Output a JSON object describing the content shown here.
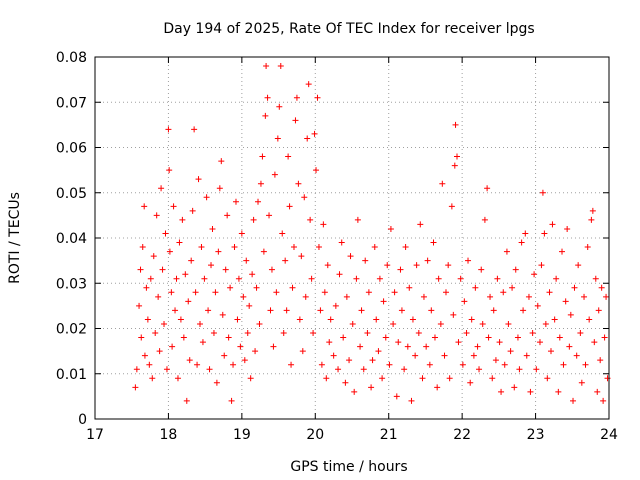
{
  "chart_data": {
    "type": "scatter",
    "title": "Day 194 of 2025, Rate Of TEC Index for receiver lpgs",
    "xlabel": "GPS time / hours",
    "ylabel": "ROTI / TECUs",
    "xlim": [
      17,
      24
    ],
    "ylim": [
      0,
      0.08
    ],
    "x_ticks": [
      17,
      18,
      19,
      20,
      21,
      22,
      23,
      24
    ],
    "x_tick_labels": [
      "17",
      "18",
      "19",
      "20",
      "21",
      "22",
      "23",
      "24"
    ],
    "y_ticks": [
      0,
      0.01,
      0.02,
      0.03,
      0.04,
      0.05,
      0.06,
      0.07,
      0.08
    ],
    "y_tick_labels": [
      "0",
      "0.01",
      "0.02",
      "0.03",
      "0.04",
      "0.05",
      "0.06",
      "0.07",
      "0.08"
    ],
    "grid": true,
    "marker": "+",
    "color": "#ff0000",
    "series": [
      {
        "name": "ROTI",
        "points": [
          [
            17.55,
            0.007
          ],
          [
            17.57,
            0.011
          ],
          [
            17.6,
            0.025
          ],
          [
            17.62,
            0.033
          ],
          [
            17.63,
            0.018
          ],
          [
            17.65,
            0.038
          ],
          [
            17.67,
            0.047
          ],
          [
            17.68,
            0.014
          ],
          [
            17.7,
            0.029
          ],
          [
            17.72,
            0.022
          ],
          [
            17.74,
            0.012
          ],
          [
            17.76,
            0.031
          ],
          [
            17.78,
            0.009
          ],
          [
            17.8,
            0.036
          ],
          [
            17.82,
            0.019
          ],
          [
            17.84,
            0.045
          ],
          [
            17.86,
            0.027
          ],
          [
            17.88,
            0.015
          ],
          [
            17.9,
            0.051
          ],
          [
            17.92,
            0.033
          ],
          [
            17.94,
            0.021
          ],
          [
            17.96,
            0.041
          ],
          [
            17.98,
            0.011
          ],
          [
            18.0,
            0.064
          ],
          [
            18.01,
            0.055
          ],
          [
            18.02,
            0.037
          ],
          [
            18.04,
            0.028
          ],
          [
            18.05,
            0.016
          ],
          [
            18.07,
            0.047
          ],
          [
            18.09,
            0.024
          ],
          [
            18.11,
            0.031
          ],
          [
            18.13,
            0.009
          ],
          [
            18.15,
            0.039
          ],
          [
            18.17,
            0.022
          ],
          [
            18.19,
            0.044
          ],
          [
            18.21,
            0.018
          ],
          [
            18.23,
            0.032
          ],
          [
            18.25,
            0.004
          ],
          [
            18.27,
            0.026
          ],
          [
            18.29,
            0.013
          ],
          [
            18.31,
            0.035
          ],
          [
            18.33,
            0.046
          ],
          [
            18.35,
            0.064
          ],
          [
            18.37,
            0.028
          ],
          [
            18.39,
            0.012
          ],
          [
            18.41,
            0.053
          ],
          [
            18.43,
            0.021
          ],
          [
            18.45,
            0.038
          ],
          [
            18.47,
            0.017
          ],
          [
            18.49,
            0.031
          ],
          [
            18.52,
            0.049
          ],
          [
            18.54,
            0.024
          ],
          [
            18.56,
            0.011
          ],
          [
            18.58,
            0.034
          ],
          [
            18.6,
            0.042
          ],
          [
            18.62,
            0.019
          ],
          [
            18.64,
            0.028
          ],
          [
            18.66,
            0.008
          ],
          [
            18.68,
            0.037
          ],
          [
            18.7,
            0.051
          ],
          [
            18.72,
            0.057
          ],
          [
            18.74,
            0.023
          ],
          [
            18.76,
            0.014
          ],
          [
            18.78,
            0.033
          ],
          [
            18.8,
            0.045
          ],
          [
            18.82,
            0.018
          ],
          [
            18.84,
            0.029
          ],
          [
            18.86,
            0.004
          ],
          [
            18.88,
            0.012
          ],
          [
            18.9,
            0.038
          ],
          [
            18.92,
            0.048
          ],
          [
            18.94,
            0.022
          ],
          [
            18.96,
            0.031
          ],
          [
            18.98,
            0.016
          ],
          [
            19.0,
            0.041
          ],
          [
            19.02,
            0.027
          ],
          [
            19.04,
            0.013
          ],
          [
            19.06,
            0.035
          ],
          [
            19.08,
            0.019
          ],
          [
            19.1,
            0.025
          ],
          [
            19.12,
            0.009
          ],
          [
            19.14,
            0.032
          ],
          [
            19.16,
            0.044
          ],
          [
            19.18,
            0.015
          ],
          [
            19.2,
            0.029
          ],
          [
            19.22,
            0.048
          ],
          [
            19.24,
            0.021
          ],
          [
            19.26,
            0.052
          ],
          [
            19.28,
            0.058
          ],
          [
            19.3,
            0.037
          ],
          [
            19.32,
            0.067
          ],
          [
            19.33,
            0.078
          ],
          [
            19.35,
            0.071
          ],
          [
            19.37,
            0.045
          ],
          [
            19.39,
            0.024
          ],
          [
            19.41,
            0.033
          ],
          [
            19.43,
            0.016
          ],
          [
            19.45,
            0.054
          ],
          [
            19.47,
            0.028
          ],
          [
            19.49,
            0.062
          ],
          [
            19.51,
            0.069
          ],
          [
            19.53,
            0.078
          ],
          [
            19.55,
            0.041
          ],
          [
            19.57,
            0.019
          ],
          [
            19.59,
            0.035
          ],
          [
            19.61,
            0.024
          ],
          [
            19.63,
            0.058
          ],
          [
            19.65,
            0.047
          ],
          [
            19.67,
            0.012
          ],
          [
            19.69,
            0.029
          ],
          [
            19.71,
            0.038
          ],
          [
            19.73,
            0.066
          ],
          [
            19.75,
            0.071
          ],
          [
            19.77,
            0.052
          ],
          [
            19.79,
            0.022
          ],
          [
            19.81,
            0.036
          ],
          [
            19.83,
            0.015
          ],
          [
            19.85,
            0.049
          ],
          [
            19.87,
            0.027
          ],
          [
            19.89,
            0.062
          ],
          [
            19.91,
            0.074
          ],
          [
            19.93,
            0.044
          ],
          [
            19.95,
            0.031
          ],
          [
            19.97,
            0.019
          ],
          [
            19.99,
            0.063
          ],
          [
            20.01,
            0.055
          ],
          [
            20.03,
            0.071
          ],
          [
            20.05,
            0.038
          ],
          [
            20.07,
            0.024
          ],
          [
            20.09,
            0.012
          ],
          [
            20.11,
            0.043
          ],
          [
            20.13,
            0.028
          ],
          [
            20.15,
            0.009
          ],
          [
            20.17,
            0.034
          ],
          [
            20.19,
            0.017
          ],
          [
            20.21,
            0.022
          ],
          [
            20.25,
            0.014
          ],
          [
            20.28,
            0.025
          ],
          [
            20.31,
            0.011
          ],
          [
            20.33,
            0.032
          ],
          [
            20.36,
            0.039
          ],
          [
            20.38,
            0.018
          ],
          [
            20.41,
            0.008
          ],
          [
            20.43,
            0.027
          ],
          [
            20.46,
            0.013
          ],
          [
            20.48,
            0.036
          ],
          [
            20.51,
            0.021
          ],
          [
            20.53,
            0.006
          ],
          [
            20.56,
            0.031
          ],
          [
            20.58,
            0.044
          ],
          [
            20.61,
            0.016
          ],
          [
            20.63,
            0.024
          ],
          [
            20.66,
            0.011
          ],
          [
            20.68,
            0.035
          ],
          [
            20.71,
            0.019
          ],
          [
            20.73,
            0.028
          ],
          [
            20.76,
            0.007
          ],
          [
            20.78,
            0.013
          ],
          [
            20.81,
            0.038
          ],
          [
            20.83,
            0.022
          ],
          [
            20.86,
            0.015
          ],
          [
            20.88,
            0.031
          ],
          [
            20.91,
            0.009
          ],
          [
            20.93,
            0.026
          ],
          [
            20.96,
            0.018
          ],
          [
            20.98,
            0.034
          ],
          [
            21.01,
            0.012
          ],
          [
            21.03,
            0.042
          ],
          [
            21.06,
            0.021
          ],
          [
            21.08,
            0.028
          ],
          [
            21.11,
            0.005
          ],
          [
            21.13,
            0.017
          ],
          [
            21.16,
            0.033
          ],
          [
            21.18,
            0.024
          ],
          [
            21.21,
            0.011
          ],
          [
            21.23,
            0.038
          ],
          [
            21.26,
            0.016
          ],
          [
            21.28,
            0.029
          ],
          [
            21.31,
            0.004
          ],
          [
            21.33,
            0.022
          ],
          [
            21.36,
            0.014
          ],
          [
            21.38,
            0.034
          ],
          [
            21.41,
            0.019
          ],
          [
            21.43,
            0.043
          ],
          [
            21.46,
            0.009
          ],
          [
            21.48,
            0.027
          ],
          [
            21.51,
            0.016
          ],
          [
            21.53,
            0.035
          ],
          [
            21.56,
            0.012
          ],
          [
            21.58,
            0.024
          ],
          [
            21.61,
            0.039
          ],
          [
            21.63,
            0.018
          ],
          [
            21.66,
            0.007
          ],
          [
            21.68,
            0.031
          ],
          [
            21.71,
            0.021
          ],
          [
            21.73,
            0.052
          ],
          [
            21.76,
            0.014
          ],
          [
            21.78,
            0.028
          ],
          [
            21.81,
            0.034
          ],
          [
            21.83,
            0.009
          ],
          [
            21.86,
            0.047
          ],
          [
            21.88,
            0.023
          ],
          [
            21.9,
            0.056
          ],
          [
            21.91,
            0.065
          ],
          [
            21.93,
            0.058
          ],
          [
            21.95,
            0.017
          ],
          [
            21.98,
            0.031
          ],
          [
            22.01,
            0.012
          ],
          [
            22.03,
            0.026
          ],
          [
            22.06,
            0.019
          ],
          [
            22.08,
            0.035
          ],
          [
            22.11,
            0.008
          ],
          [
            22.13,
            0.022
          ],
          [
            22.16,
            0.014
          ],
          [
            22.18,
            0.029
          ],
          [
            22.21,
            0.016
          ],
          [
            22.23,
            0.011
          ],
          [
            22.26,
            0.033
          ],
          [
            22.28,
            0.021
          ],
          [
            22.31,
            0.044
          ],
          [
            22.34,
            0.051
          ],
          [
            22.36,
            0.018
          ],
          [
            22.38,
            0.027
          ],
          [
            22.41,
            0.009
          ],
          [
            22.43,
            0.024
          ],
          [
            22.46,
            0.013
          ],
          [
            22.48,
            0.031
          ],
          [
            22.51,
            0.017
          ],
          [
            22.53,
            0.006
          ],
          [
            22.56,
            0.028
          ],
          [
            22.58,
            0.012
          ],
          [
            22.61,
            0.037
          ],
          [
            22.63,
            0.021
          ],
          [
            22.66,
            0.015
          ],
          [
            22.68,
            0.029
          ],
          [
            22.71,
            0.007
          ],
          [
            22.73,
            0.033
          ],
          [
            22.76,
            0.018
          ],
          [
            22.78,
            0.011
          ],
          [
            22.81,
            0.039
          ],
          [
            22.83,
            0.024
          ],
          [
            22.86,
            0.041
          ],
          [
            22.88,
            0.014
          ],
          [
            22.91,
            0.027
          ],
          [
            22.93,
            0.006
          ],
          [
            22.96,
            0.019
          ],
          [
            22.98,
            0.032
          ],
          [
            23.01,
            0.011
          ],
          [
            23.03,
            0.025
          ],
          [
            23.06,
            0.017
          ],
          [
            23.08,
            0.034
          ],
          [
            23.1,
            0.05
          ],
          [
            23.12,
            0.041
          ],
          [
            23.14,
            0.021
          ],
          [
            23.16,
            0.009
          ],
          [
            23.19,
            0.028
          ],
          [
            23.21,
            0.015
          ],
          [
            23.23,
            0.043
          ],
          [
            23.26,
            0.022
          ],
          [
            23.28,
            0.031
          ],
          [
            23.31,
            0.006
          ],
          [
            23.33,
            0.018
          ],
          [
            23.36,
            0.037
          ],
          [
            23.38,
            0.012
          ],
          [
            23.41,
            0.026
          ],
          [
            23.43,
            0.042
          ],
          [
            23.46,
            0.016
          ],
          [
            23.48,
            0.023
          ],
          [
            23.51,
            0.004
          ],
          [
            23.53,
            0.029
          ],
          [
            23.56,
            0.014
          ],
          [
            23.58,
            0.034
          ],
          [
            23.61,
            0.019
          ],
          [
            23.63,
            0.008
          ],
          [
            23.66,
            0.027
          ],
          [
            23.68,
            0.012
          ],
          [
            23.71,
            0.038
          ],
          [
            23.73,
            0.022
          ],
          [
            23.76,
            0.044
          ],
          [
            23.78,
            0.046
          ],
          [
            23.8,
            0.017
          ],
          [
            23.82,
            0.031
          ],
          [
            23.84,
            0.006
          ],
          [
            23.86,
            0.024
          ],
          [
            23.88,
            0.013
          ],
          [
            23.9,
            0.029
          ],
          [
            23.92,
            0.004
          ],
          [
            23.94,
            0.018
          ],
          [
            23.96,
            0.027
          ],
          [
            23.98,
            0.009
          ]
        ]
      }
    ]
  }
}
